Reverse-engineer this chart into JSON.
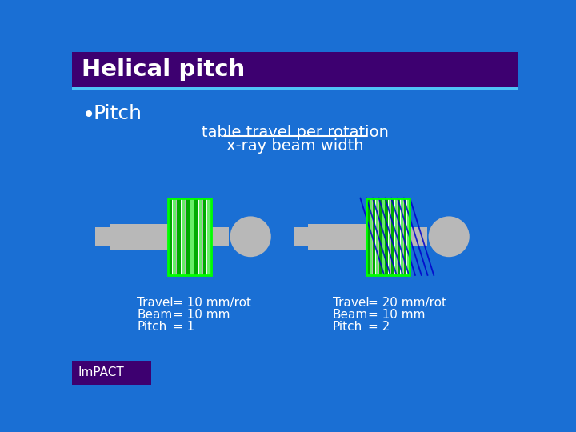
{
  "title": "Helical pitch",
  "title_bg": "#3d0070",
  "bg_color": "#1a6fd4",
  "bullet_text": "Pitch",
  "formula_line1": "table travel per rotation",
  "formula_line2": "x-ray beam width",
  "left_labels": [
    "Travel",
    "Beam",
    "Pitch"
  ],
  "left_values": [
    "= 10 mm/rot",
    "= 10 mm",
    "= 1"
  ],
  "right_labels": [
    "Travel",
    "Beam",
    "Pitch"
  ],
  "right_values": [
    "= 20 mm/rot",
    "= 10 mm",
    "= 2"
  ],
  "text_color": "#ffffff",
  "gray_color": "#b8b8b8",
  "green_dark": "#00aa00",
  "green_light": "#66ee66",
  "blue_line_color": "#0000cc",
  "impact_bg": "#3d0070",
  "cyan_line": "#4fc3f7"
}
